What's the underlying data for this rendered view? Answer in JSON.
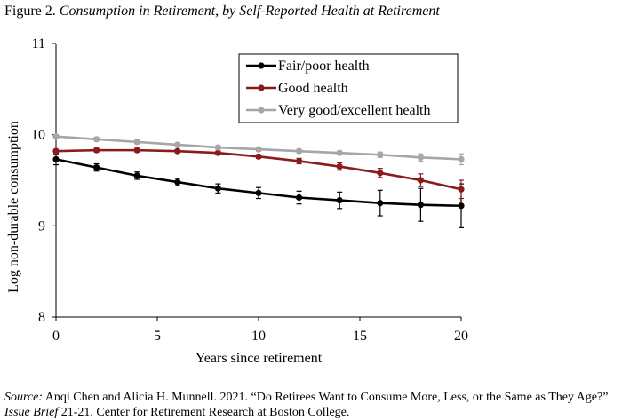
{
  "figure": {
    "label": "Figure 2.",
    "title": "Consumption in Retirement, by Self-Reported Health at Retirement"
  },
  "source": {
    "label": "Source:",
    "text1": " Anqi Chen and Alicia H. Munnell. 2021. “Do Retirees Want to Consume More, Less, or the Same as They Age?” ",
    "issue_brief": "Issue Brief",
    "text2": " 21-21. Center for Retirement Research at Boston College."
  },
  "chart_data": {
    "type": "line",
    "xlabel": "Years since retirement",
    "ylabel": "Log non-durable consumption",
    "xlim": [
      0,
      20
    ],
    "ylim": [
      8,
      11
    ],
    "xticks": [
      "0",
      "5",
      "10",
      "15",
      "20"
    ],
    "yticks": [
      "8",
      "9",
      "10",
      "11"
    ],
    "grid": false,
    "legend_position": "top-right",
    "x": [
      0,
      2,
      4,
      6,
      8,
      10,
      12,
      14,
      16,
      18,
      20
    ],
    "series": [
      {
        "name": "Fair/poor health",
        "color": "#000000",
        "marker_color": "#000000",
        "values": [
          9.73,
          9.64,
          9.55,
          9.48,
          9.41,
          9.36,
          9.31,
          9.28,
          9.25,
          9.23,
          9.22
        ],
        "error": [
          0.06,
          0.04,
          0.04,
          0.04,
          0.05,
          0.06,
          0.07,
          0.09,
          0.14,
          0.18,
          0.24
        ]
      },
      {
        "name": "Good health",
        "color": "#8b1a1a",
        "marker_color": "#8b1a1a",
        "values": [
          9.82,
          9.83,
          9.83,
          9.82,
          9.8,
          9.76,
          9.71,
          9.65,
          9.58,
          9.5,
          9.4
        ],
        "error": [
          0.02,
          0.02,
          0.02,
          0.02,
          0.02,
          0.02,
          0.03,
          0.04,
          0.05,
          0.07,
          0.1
        ]
      },
      {
        "name": "Very good/excellent health",
        "color": "#a6a6a6",
        "marker_color": "#a6a6a6",
        "values": [
          9.98,
          9.95,
          9.92,
          9.89,
          9.86,
          9.84,
          9.82,
          9.8,
          9.78,
          9.75,
          9.73
        ],
        "error": [
          0.02,
          0.02,
          0.02,
          0.02,
          0.02,
          0.02,
          0.02,
          0.02,
          0.03,
          0.04,
          0.06
        ]
      }
    ]
  }
}
